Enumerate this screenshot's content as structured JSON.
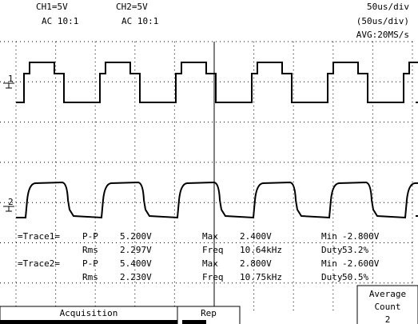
{
  "header": {
    "ch1_scale": "CH1=5V",
    "ch1_coupling": "AC  10:1",
    "ch2_scale": "CH2=5V",
    "ch2_coupling": "AC  10:1",
    "timebase": "50us/div",
    "timebase_window": "(50us/div)",
    "acquisition_rate": "AVG:20MS/s"
  },
  "channel_markers": [
    "1",
    "2"
  ],
  "measurements": {
    "rows": [
      [
        "=Trace1=",
        "P-P",
        "5.200V",
        "Max",
        "2.400V",
        "Min",
        "-2.800V"
      ],
      [
        "",
        "Rms",
        "2.297V",
        "Freq",
        "10.64kHz",
        "Duty",
        "53.2%"
      ],
      [
        "=Trace2=",
        "P-P",
        "5.400V",
        "Max",
        "2.800V",
        "Min",
        "-2.600V"
      ],
      [
        "",
        "Rms",
        "2.230V",
        "Freq",
        "10.75kHz",
        "Duty",
        "50.5%"
      ]
    ]
  },
  "menu": {
    "acquisition": "Acquisition",
    "rep": "Rep",
    "average_line1": "Average",
    "average_line2": "Count",
    "average_value": "2"
  }
}
